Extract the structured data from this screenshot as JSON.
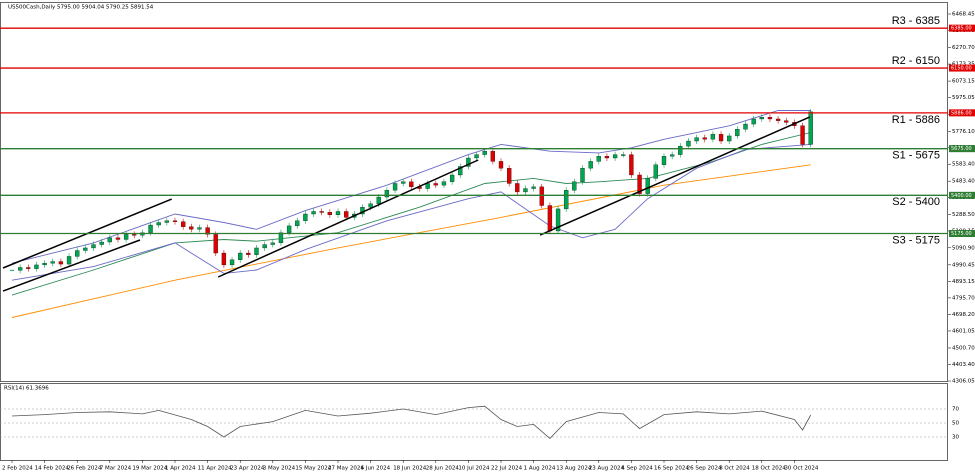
{
  "chart_data": {
    "type": "candlestick",
    "title": "US500Cash,Daily  5795.00 5904.04 5790.25 5891.54",
    "categories": [
      "2 Feb 2024",
      null,
      null,
      null,
      "14 Feb 2024",
      null,
      null,
      null,
      "26 Feb 2024",
      null,
      null,
      null,
      "7 Mar 2024",
      null,
      null,
      null,
      "19 Mar 2024",
      null,
      null,
      null,
      "1 Apr 2024",
      null,
      null,
      null,
      "11 Apr 2024",
      null,
      null,
      null,
      "23 Apr 2024",
      null,
      null,
      null,
      "3 May 2024",
      null,
      null,
      null,
      "15 May 2024",
      null,
      null,
      null,
      "27 May 2024",
      null,
      null,
      null,
      "6 Jun 2024",
      null,
      null,
      null,
      "18 Jun 2024",
      null,
      null,
      null,
      "28 Jun 2024",
      null,
      null,
      null,
      "10 Jul 2024",
      null,
      null,
      null,
      "22 Jul 2024",
      null,
      null,
      null,
      "1 Aug 2024",
      null,
      null,
      null,
      "13 Aug 2024",
      null,
      null,
      null,
      "23 Aug 2024",
      null,
      null,
      null,
      "4 Sep 2024",
      null,
      null,
      null,
      "16 Sep 2024",
      null,
      null,
      null,
      "26 Sep 2024",
      null,
      null,
      null,
      "8 Oct 2024",
      null,
      null,
      null,
      "18 Oct 2024",
      null,
      null,
      null,
      "30 Oct 2024",
      null,
      null
    ],
    "values": [
      4958,
      4975,
      4968,
      4990,
      5000,
      5010,
      4995,
      5040,
      5075,
      5090,
      5110,
      5125,
      5150,
      5140,
      5170,
      5165,
      5180,
      5225,
      5240,
      5250,
      5245,
      5215,
      5200,
      5210,
      5170,
      5060,
      4990,
      5020,
      5060,
      5050,
      5090,
      5110,
      5120,
      5180,
      5220,
      5250,
      5290,
      5305,
      5300,
      5285,
      5305,
      5270,
      5290,
      5330,
      5350,
      5390,
      5430,
      5470,
      5480,
      5450,
      5440,
      5470,
      5460,
      5480,
      5520,
      5570,
      5620,
      5640,
      5660,
      5600,
      5560,
      5470,
      5420,
      5440,
      5450,
      5340,
      5190,
      5320,
      5430,
      5480,
      5560,
      5600,
      5630,
      5620,
      5640,
      5640,
      5520,
      5410,
      5500,
      5580,
      5630,
      5640,
      5690,
      5720,
      5740,
      5730,
      5760,
      5720,
      5750,
      5790,
      5820,
      5850,
      5860,
      5850,
      5840,
      5830,
      5810,
      5700,
      5892
    ],
    "up_color": "#00a650",
    "down_color": "#e00000",
    "ylim": [
      4306.05,
      6468.45
    ],
    "yticks": [
      4306.05,
      {
        "value": 4403.4,
        "label": "4403.40"
      },
      {
        "value": 4500.7,
        "label": "4500.70"
      },
      4601.05,
      {
        "value": 4698.2,
        "label": "4698.20"
      },
      {
        "value": 4795.7,
        "label": "4795.70"
      },
      4893.15,
      4990.45,
      {
        "value": 5090.9,
        "label": "5090.90"
      },
      5190.15,
      {
        "value": 5288.5,
        "label": "5288.50"
      },
      5385.85,
      {
        "value": 5483.4,
        "label": "5483.40"
      },
      {
        "value": 5583.4,
        "label": "5583.40"
      },
      5680.85,
      {
        "value": 5776.1,
        "label": "5776.10"
      },
      5875.65,
      5975.05,
      6073.15,
      6173.35,
      {
        "value": 6270.7,
        "label": "6270.70"
      },
      {
        "value": 6370.7,
        "label": "6370.70"
      },
      6468.45
    ],
    "levels": [
      {
        "label": "R3 - 6385",
        "value": 6385,
        "tag": "6385.00",
        "color": "#e00000"
      },
      {
        "label": "R2 - 6150",
        "value": 6150,
        "tag": "6150.00",
        "color": "#e00000"
      },
      {
        "label": "R1 - 5886",
        "value": 5886,
        "tag": "5886.00",
        "color": "#e00000"
      },
      {
        "label": "S1 - 5675",
        "value": 5675,
        "tag": "5675.00",
        "color": "#2e7d32"
      },
      {
        "label": "S2 - 5400",
        "value": 5400,
        "tag": "5400.00",
        "color": "#2e7d32"
      },
      {
        "label": "S3 - 5175",
        "value": 5175,
        "tag": "5175.00",
        "color": "#2e7d32"
      }
    ],
    "overlays": [
      {
        "color": "#ff8c00",
        "x": [
          0,
          20,
          40,
          60,
          80,
          98
        ],
        "values": [
          4680,
          4900,
          5090,
          5270,
          5460,
          5580
        ]
      },
      {
        "color": "#2e8b57",
        "x": [
          0,
          10,
          20,
          26,
          30,
          40,
          50,
          58,
          64,
          68,
          72,
          78,
          86,
          92,
          98
        ],
        "values": [
          4812,
          4960,
          5120,
          5140,
          5130,
          5180,
          5330,
          5470,
          5500,
          5470,
          5480,
          5500,
          5600,
          5700,
          5770
        ]
      },
      {
        "color": "#6a6ac8",
        "x": [
          0,
          10,
          20,
          26,
          30,
          36,
          46,
          56,
          60,
          66,
          72,
          76,
          80,
          88,
          94,
          98
        ],
        "values": [
          5000,
          5120,
          5290,
          5240,
          5200,
          5310,
          5460,
          5640,
          5700,
          5660,
          5650,
          5680,
          5730,
          5810,
          5900,
          5900
        ]
      },
      {
        "color": "#6a6ac8",
        "x": [
          0,
          10,
          20,
          26,
          30,
          36,
          46,
          56,
          60,
          66,
          70,
          74,
          78,
          84,
          90,
          98
        ],
        "values": [
          4900,
          4980,
          5120,
          4940,
          4960,
          5080,
          5250,
          5380,
          5420,
          5220,
          5150,
          5200,
          5380,
          5560,
          5670,
          5700
        ]
      }
    ],
    "trendlines": [
      {
        "color": "#000000",
        "x": [
          -1.1,
          19.6
        ],
        "values": [
          4972,
          5378
        ]
      },
      {
        "color": "#000000",
        "x": [
          -1.1,
          15.7
        ],
        "values": [
          4836,
          5137
        ]
      },
      {
        "color": "#000000",
        "x": [
          25.3,
          57.2
        ],
        "values": [
          4919,
          5608
        ]
      },
      {
        "color": "#000000",
        "x": [
          64.8,
          97.9
        ],
        "values": [
          5166,
          5862
        ]
      }
    ],
    "rsi": {
      "title": "RSI(14) 61.3696",
      "color": "#555555",
      "ylim": [
        0,
        100
      ],
      "yticks": [
        70,
        50,
        30
      ],
      "x": [
        0,
        4,
        8,
        12,
        16,
        18,
        22,
        24,
        26,
        28,
        32,
        36,
        40,
        44,
        48,
        52,
        56,
        58,
        60,
        62,
        64,
        66,
        68,
        72,
        75,
        77,
        80,
        84,
        88,
        92,
        96,
        97,
        98
      ],
      "values": [
        60,
        62,
        65,
        66,
        63,
        68,
        55,
        45,
        30,
        45,
        52,
        68,
        60,
        64,
        70,
        62,
        72,
        74,
        55,
        45,
        48,
        28,
        52,
        65,
        63,
        42,
        62,
        66,
        63,
        67,
        55,
        40,
        61.37
      ]
    }
  }
}
